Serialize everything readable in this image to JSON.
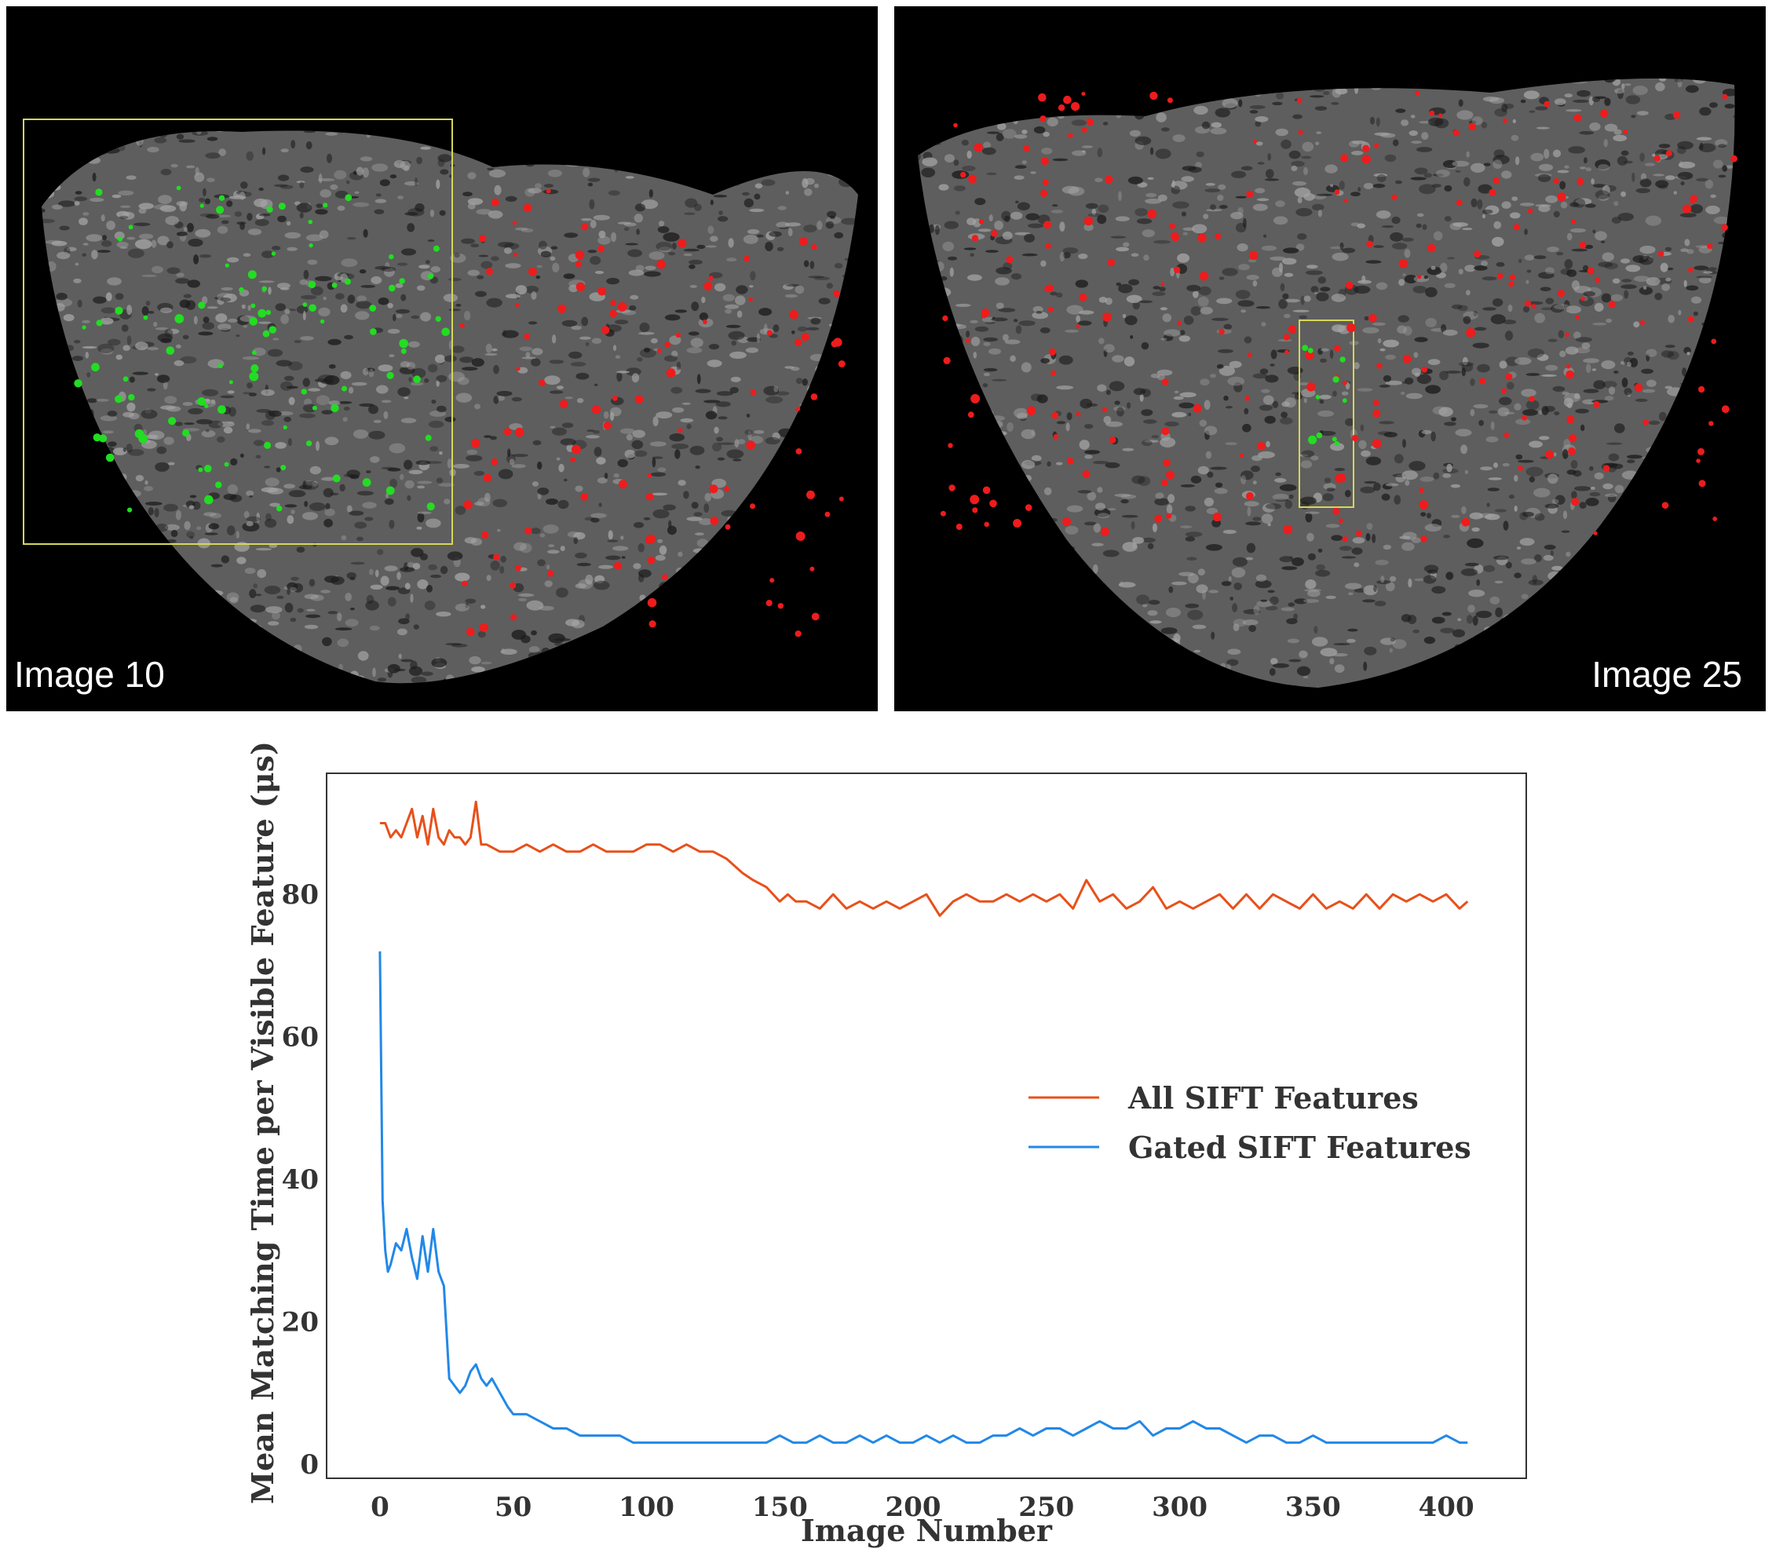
{
  "panels": {
    "left_label": "Image 10",
    "right_label": "Image 25",
    "colors": {
      "background": "#000000",
      "surface": "#7a7a7a",
      "matched": "#22dd22",
      "unmatched": "#ee1c1c",
      "gate_box": "#d6d65a"
    }
  },
  "chart_data": {
    "type": "line",
    "xlabel": "Image Number",
    "ylabel": "Mean Matching Time per Visible Feature (μs)",
    "xlim": [
      -20,
      430
    ],
    "ylim": [
      -2,
      97
    ],
    "xticks": [
      0,
      50,
      100,
      150,
      200,
      250,
      300,
      350,
      400
    ],
    "yticks": [
      0,
      20,
      40,
      60,
      80
    ],
    "grid": false,
    "legend_position": "center-right",
    "series": [
      {
        "name": "All SIFT Features",
        "color": "#e8501a",
        "x": [
          0,
          2,
          4,
          6,
          8,
          10,
          12,
          14,
          16,
          18,
          20,
          22,
          24,
          26,
          28,
          30,
          32,
          34,
          36,
          38,
          40,
          45,
          50,
          55,
          60,
          65,
          70,
          75,
          80,
          85,
          90,
          95,
          100,
          105,
          110,
          115,
          120,
          125,
          130,
          133,
          136,
          140,
          145,
          150,
          153,
          156,
          160,
          165,
          170,
          175,
          180,
          185,
          190,
          195,
          200,
          205,
          210,
          215,
          220,
          225,
          230,
          235,
          240,
          245,
          250,
          255,
          260,
          265,
          270,
          275,
          280,
          285,
          290,
          295,
          300,
          305,
          310,
          315,
          320,
          325,
          330,
          335,
          340,
          345,
          350,
          355,
          360,
          365,
          370,
          375,
          380,
          385,
          390,
          395,
          400,
          405,
          408
        ],
        "y": [
          90,
          90,
          88,
          89,
          88,
          90,
          92,
          88,
          91,
          87,
          92,
          88,
          87,
          89,
          88,
          88,
          87,
          88,
          93,
          87,
          87,
          86,
          86,
          87,
          86,
          87,
          86,
          86,
          87,
          86,
          86,
          86,
          87,
          87,
          86,
          87,
          86,
          86,
          85,
          84,
          83,
          82,
          81,
          79,
          80,
          79,
          79,
          78,
          80,
          78,
          79,
          78,
          79,
          78,
          79,
          80,
          77,
          79,
          80,
          79,
          79,
          80,
          79,
          80,
          79,
          80,
          78,
          82,
          79,
          80,
          78,
          79,
          81,
          78,
          79,
          78,
          79,
          80,
          78,
          80,
          78,
          80,
          79,
          78,
          80,
          78,
          79,
          78,
          80,
          78,
          80,
          79,
          80,
          79,
          80,
          78,
          79
        ]
      },
      {
        "name": "Gated SIFT Features",
        "color": "#2288e8",
        "x": [
          0,
          1,
          2,
          3,
          4,
          6,
          8,
          10,
          12,
          14,
          16,
          18,
          20,
          22,
          24,
          26,
          28,
          30,
          32,
          34,
          36,
          38,
          40,
          42,
          45,
          48,
          50,
          55,
          60,
          65,
          70,
          75,
          80,
          85,
          90,
          95,
          100,
          105,
          110,
          115,
          120,
          125,
          130,
          135,
          140,
          145,
          150,
          155,
          160,
          165,
          170,
          175,
          180,
          185,
          190,
          195,
          200,
          205,
          210,
          215,
          220,
          225,
          230,
          235,
          240,
          245,
          250,
          255,
          260,
          265,
          270,
          275,
          280,
          285,
          290,
          295,
          300,
          305,
          310,
          315,
          320,
          325,
          330,
          335,
          340,
          345,
          350,
          355,
          360,
          365,
          370,
          375,
          380,
          385,
          390,
          395,
          400,
          405,
          408
        ],
        "y": [
          72,
          37,
          30,
          27,
          28,
          31,
          30,
          33,
          29,
          26,
          32,
          27,
          33,
          27,
          25,
          12,
          11,
          10,
          11,
          13,
          14,
          12,
          11,
          12,
          10,
          8,
          7,
          7,
          6,
          5,
          5,
          4,
          4,
          4,
          4,
          3,
          3,
          3,
          3,
          3,
          3,
          3,
          3,
          3,
          3,
          3,
          4,
          3,
          3,
          4,
          3,
          3,
          4,
          3,
          4,
          3,
          3,
          4,
          3,
          4,
          3,
          3,
          4,
          4,
          5,
          4,
          5,
          5,
          4,
          5,
          6,
          5,
          5,
          6,
          4,
          5,
          5,
          6,
          5,
          5,
          4,
          3,
          4,
          4,
          3,
          3,
          4,
          3,
          3,
          3,
          3,
          3,
          3,
          3,
          3,
          3,
          4,
          3,
          3
        ]
      }
    ]
  }
}
